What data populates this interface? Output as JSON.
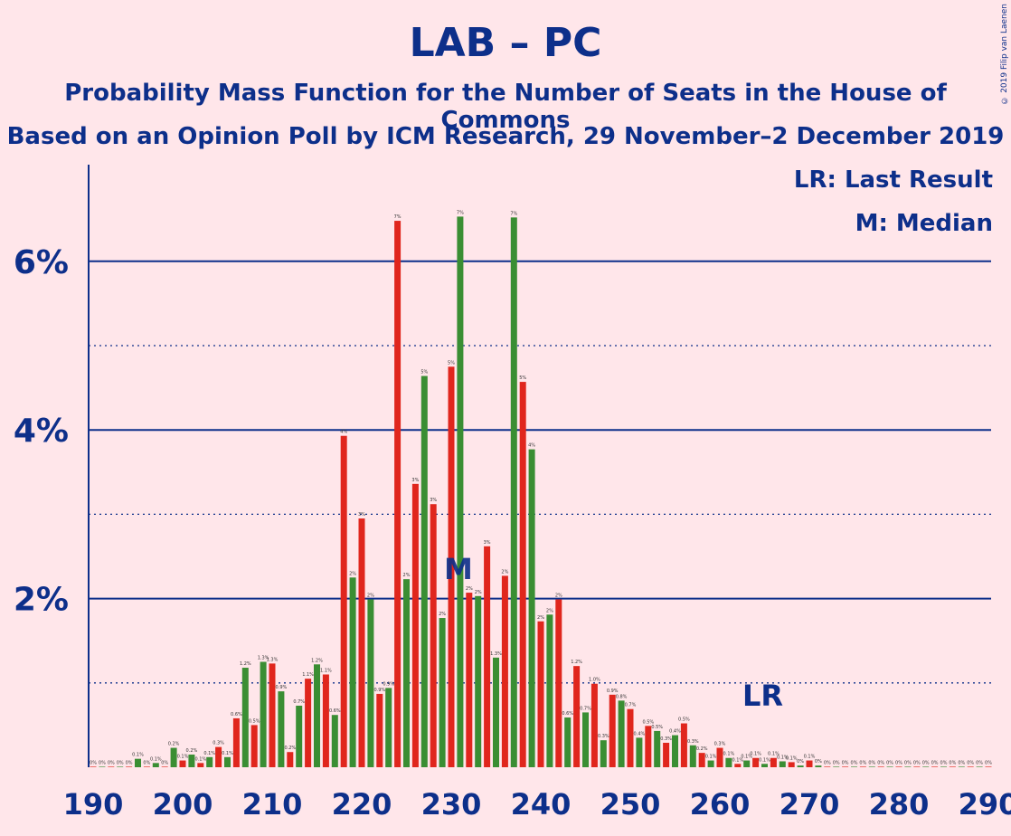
{
  "title": "LAB – PC",
  "subtitle1": "Probability Mass Function for the Number of Seats in the House of Commons",
  "subtitle2": "Based on an Opinion Poll by ICM Research, 29 November–2 December 2019",
  "copyright": "© 2019 Filip van Laenen",
  "legend": {
    "last_result": "LR: Last Result",
    "median": "M: Median"
  },
  "colors": {
    "background": "#FFE6EA",
    "text": "#0D2F8A",
    "red": "#E0261D",
    "green": "#3A8E33"
  },
  "chart_data": {
    "type": "bar",
    "xlim": [
      190,
      290
    ],
    "ylim": [
      0,
      7
    ],
    "x_ticks": [
      190,
      200,
      210,
      220,
      230,
      240,
      250,
      260,
      270,
      280,
      290
    ],
    "y_ticks": [
      {
        "value": 2,
        "label": "2%"
      },
      {
        "value": 4,
        "label": "4%"
      },
      {
        "value": 6,
        "label": "6%"
      }
    ],
    "last_result": {
      "x": 265,
      "label": "LR"
    },
    "median": {
      "x": 231,
      "label": "M"
    },
    "bars": [
      {
        "x": 190,
        "y": 0.0,
        "label": "0%"
      },
      {
        "x": 191,
        "y": 0.0,
        "label": "0%"
      },
      {
        "x": 192,
        "y": 0.0,
        "label": "0%"
      },
      {
        "x": 193,
        "y": 0.0,
        "label": "0%"
      },
      {
        "x": 194,
        "y": 0.0,
        "label": "0%"
      },
      {
        "x": 195,
        "y": 0.1,
        "label": "0.1%"
      },
      {
        "x": 196,
        "y": 0.0,
        "label": "0%"
      },
      {
        "x": 197,
        "y": 0.05,
        "label": "0.1%"
      },
      {
        "x": 198,
        "y": 0.0,
        "label": "0%"
      },
      {
        "x": 199,
        "y": 0.23,
        "label": "0.2%"
      },
      {
        "x": 200,
        "y": 0.08,
        "label": "0.1%"
      },
      {
        "x": 201,
        "y": 0.15,
        "label": "0.2%"
      },
      {
        "x": 202,
        "y": 0.05,
        "label": "0.1%"
      },
      {
        "x": 203,
        "y": 0.12,
        "label": "0.1%"
      },
      {
        "x": 204,
        "y": 0.24,
        "label": "0.3%"
      },
      {
        "x": 205,
        "y": 0.12,
        "label": "0.1%"
      },
      {
        "x": 206,
        "y": 0.58,
        "label": "0.6%"
      },
      {
        "x": 207,
        "y": 1.18,
        "label": "1.2%"
      },
      {
        "x": 208,
        "y": 0.5,
        "label": "0.5%"
      },
      {
        "x": 209,
        "y": 1.25,
        "label": "1.3%"
      },
      {
        "x": 210,
        "y": 1.23,
        "label": "1.3%"
      },
      {
        "x": 211,
        "y": 0.9,
        "label": "0.9%"
      },
      {
        "x": 212,
        "y": 0.18,
        "label": "0.2%"
      },
      {
        "x": 213,
        "y": 0.73,
        "label": "0.7%"
      },
      {
        "x": 214,
        "y": 1.05,
        "label": "1.1%"
      },
      {
        "x": 215,
        "y": 1.22,
        "label": "1.2%"
      },
      {
        "x": 216,
        "y": 1.1,
        "label": "1.1%"
      },
      {
        "x": 217,
        "y": 0.62,
        "label": "0.6%"
      },
      {
        "x": 218,
        "y": 3.93,
        "label": "4%"
      },
      {
        "x": 219,
        "y": 2.25,
        "label": "2%"
      },
      {
        "x": 220,
        "y": 2.95,
        "label": "3%"
      },
      {
        "x": 221,
        "y": 1.99,
        "label": "2%"
      },
      {
        "x": 222,
        "y": 0.87,
        "label": "0.9%"
      },
      {
        "x": 223,
        "y": 0.94,
        "label": "0.9%"
      },
      {
        "x": 224,
        "y": 6.48,
        "label": "7%"
      },
      {
        "x": 225,
        "y": 2.23,
        "label": "2%"
      },
      {
        "x": 226,
        "y": 3.36,
        "label": "3%"
      },
      {
        "x": 227,
        "y": 4.64,
        "label": "5%"
      },
      {
        "x": 228,
        "y": 3.12,
        "label": "3%"
      },
      {
        "x": 229,
        "y": 1.77,
        "label": "2%"
      },
      {
        "x": 230,
        "y": 4.75,
        "label": "5%"
      },
      {
        "x": 231,
        "y": 6.53,
        "label": "7%"
      },
      {
        "x": 232,
        "y": 2.07,
        "label": "2%"
      },
      {
        "x": 233,
        "y": 2.03,
        "label": "2%"
      },
      {
        "x": 234,
        "y": 2.62,
        "label": "3%"
      },
      {
        "x": 235,
        "y": 1.3,
        "label": "1.3%"
      },
      {
        "x": 236,
        "y": 2.27,
        "label": "2%"
      },
      {
        "x": 237,
        "y": 6.52,
        "label": "7%"
      },
      {
        "x": 238,
        "y": 4.57,
        "label": "5%"
      },
      {
        "x": 239,
        "y": 3.77,
        "label": "4%"
      },
      {
        "x": 240,
        "y": 1.73,
        "label": "2%"
      },
      {
        "x": 241,
        "y": 1.81,
        "label": "2%"
      },
      {
        "x": 242,
        "y": 1.99,
        "label": "2%"
      },
      {
        "x": 243,
        "y": 0.59,
        "label": "0.6%"
      },
      {
        "x": 244,
        "y": 1.2,
        "label": "1.2%"
      },
      {
        "x": 245,
        "y": 0.65,
        "label": "0.7%"
      },
      {
        "x": 246,
        "y": 0.99,
        "label": "1.0%"
      },
      {
        "x": 247,
        "y": 0.32,
        "label": "0.3%"
      },
      {
        "x": 248,
        "y": 0.86,
        "label": "0.9%"
      },
      {
        "x": 249,
        "y": 0.79,
        "label": "0.8%"
      },
      {
        "x": 250,
        "y": 0.69,
        "label": "0.7%"
      },
      {
        "x": 251,
        "y": 0.35,
        "label": "0.4%"
      },
      {
        "x": 252,
        "y": 0.49,
        "label": "0.5%"
      },
      {
        "x": 253,
        "y": 0.43,
        "label": "0.5%"
      },
      {
        "x": 254,
        "y": 0.29,
        "label": "0.3%"
      },
      {
        "x": 255,
        "y": 0.38,
        "label": "0.4%"
      },
      {
        "x": 256,
        "y": 0.52,
        "label": "0.5%"
      },
      {
        "x": 257,
        "y": 0.26,
        "label": "0.3%"
      },
      {
        "x": 258,
        "y": 0.17,
        "label": "0.2%"
      },
      {
        "x": 259,
        "y": 0.08,
        "label": "0.1%"
      },
      {
        "x": 260,
        "y": 0.23,
        "label": "0.3%"
      },
      {
        "x": 261,
        "y": 0.11,
        "label": "0.1%"
      },
      {
        "x": 262,
        "y": 0.04,
        "label": "0.1%"
      },
      {
        "x": 263,
        "y": 0.08,
        "label": "0.1%"
      },
      {
        "x": 264,
        "y": 0.11,
        "label": "0.1%"
      },
      {
        "x": 265,
        "y": 0.04,
        "label": "0.1%"
      },
      {
        "x": 266,
        "y": 0.11,
        "label": "0.1%"
      },
      {
        "x": 267,
        "y": 0.07,
        "label": "0.1%"
      },
      {
        "x": 268,
        "y": 0.06,
        "label": "0.1%"
      },
      {
        "x": 269,
        "y": 0.02,
        "label": "0%"
      },
      {
        "x": 270,
        "y": 0.08,
        "label": "0.1%"
      },
      {
        "x": 271,
        "y": 0.02,
        "label": "0%"
      },
      {
        "x": 272,
        "y": 0.0,
        "label": "0%"
      },
      {
        "x": 273,
        "y": 0.0,
        "label": "0%"
      },
      {
        "x": 274,
        "y": 0.0,
        "label": "0%"
      },
      {
        "x": 275,
        "y": 0.0,
        "label": "0%"
      },
      {
        "x": 276,
        "y": 0.0,
        "label": "0%"
      },
      {
        "x": 277,
        "y": 0.0,
        "label": "0%"
      },
      {
        "x": 278,
        "y": 0.0,
        "label": "0%"
      },
      {
        "x": 279,
        "y": 0.0,
        "label": "0%"
      },
      {
        "x": 280,
        "y": 0.0,
        "label": "0%"
      },
      {
        "x": 281,
        "y": 0.0,
        "label": "0%"
      },
      {
        "x": 282,
        "y": 0.0,
        "label": "0%"
      },
      {
        "x": 283,
        "y": 0.0,
        "label": "0%"
      },
      {
        "x": 284,
        "y": 0.0,
        "label": "0%"
      },
      {
        "x": 285,
        "y": 0.0,
        "label": "0%"
      },
      {
        "x": 286,
        "y": 0.0,
        "label": "0%"
      },
      {
        "x": 287,
        "y": 0.0,
        "label": "0%"
      },
      {
        "x": 288,
        "y": 0.0,
        "label": "0%"
      },
      {
        "x": 289,
        "y": 0.0,
        "label": "0%"
      },
      {
        "x": 290,
        "y": 0.0,
        "label": "0%"
      }
    ]
  }
}
